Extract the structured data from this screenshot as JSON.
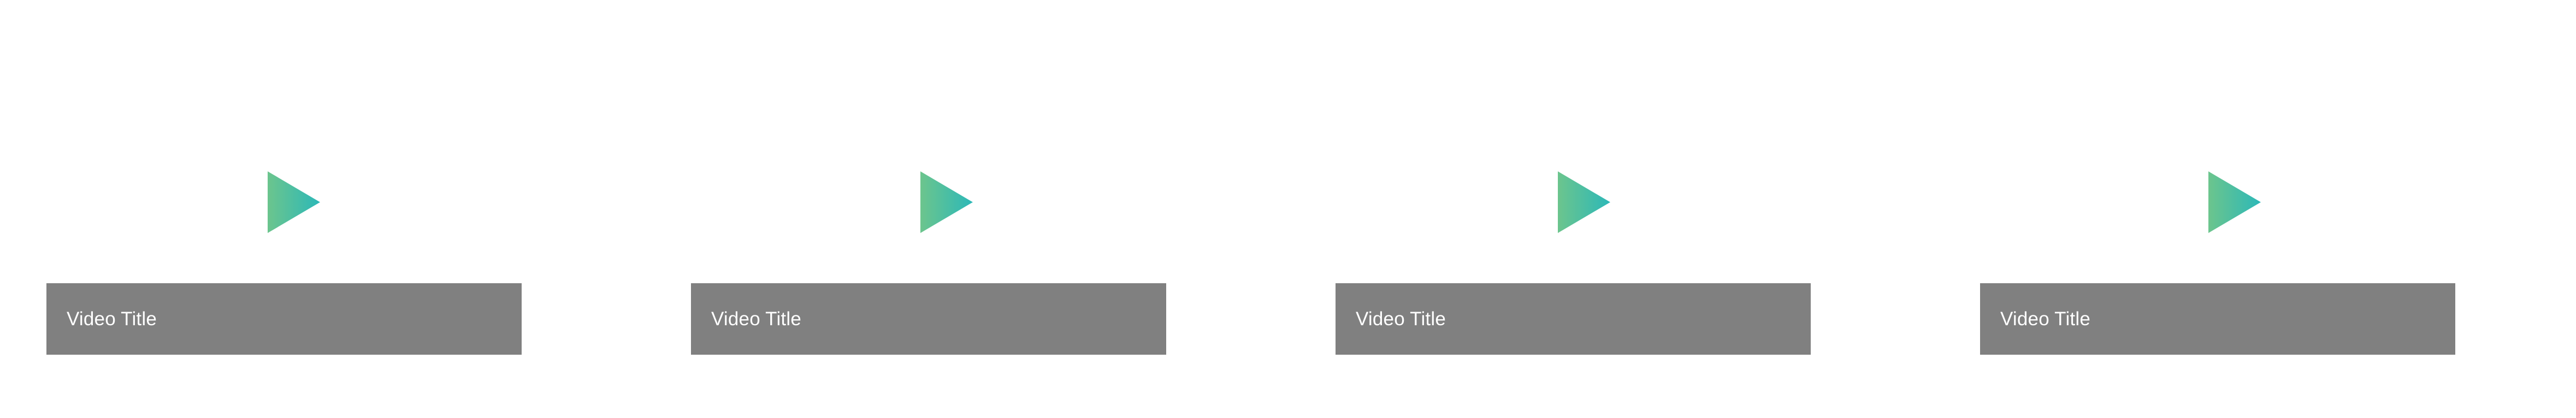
{
  "accent_gradient": {
    "start": "#6cc58d",
    "end": "#2cb8b8"
  },
  "title_bar_color": "#808080",
  "title_text_color": "#ffffff",
  "videos": [
    {
      "title": "Video Title",
      "icon": "play-icon"
    },
    {
      "title": "Video Title",
      "icon": "play-icon"
    },
    {
      "title": "Video Title",
      "icon": "play-icon"
    },
    {
      "title": "Video Title",
      "icon": "play-icon"
    }
  ]
}
